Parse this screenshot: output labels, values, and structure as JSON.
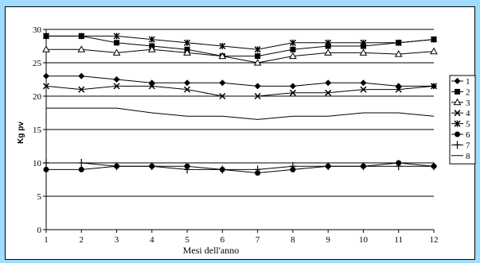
{
  "chart_data": {
    "type": "line",
    "xlabel": "Mesi dell'anno",
    "ylabel": "Kg pv",
    "x": [
      1,
      2,
      3,
      4,
      5,
      6,
      7,
      8,
      9,
      10,
      11,
      12
    ],
    "ylim": [
      0,
      30
    ],
    "xlim": [
      1,
      12
    ],
    "yticks": [
      0,
      5,
      10,
      15,
      20,
      25,
      30
    ],
    "grid": "horizontal",
    "legend_position": "right",
    "series": [
      {
        "name": "1",
        "marker": "diamond",
        "values": [
          23,
          23,
          22.5,
          22,
          22,
          22,
          21.5,
          21.5,
          22,
          22,
          21.5,
          21.5
        ]
      },
      {
        "name": "2",
        "marker": "square",
        "values": [
          29,
          29,
          28,
          27.5,
          27,
          26,
          26,
          27,
          27.5,
          27.5,
          28,
          28.5
        ]
      },
      {
        "name": "3",
        "marker": "triangle",
        "values": [
          27,
          27,
          26.5,
          27,
          26.5,
          26,
          25,
          26,
          26.5,
          26.5,
          26.3,
          26.7
        ]
      },
      {
        "name": "4",
        "marker": "x",
        "values": [
          21.5,
          21,
          21.5,
          21.5,
          21,
          20,
          20,
          20.5,
          20.5,
          21,
          21,
          21.5
        ]
      },
      {
        "name": "5",
        "marker": "star",
        "values": [
          29,
          29,
          29,
          28.5,
          28,
          27.5,
          27,
          28,
          28,
          28,
          28,
          28.5
        ]
      },
      {
        "name": "6",
        "marker": "circle",
        "values": [
          9,
          9,
          9.5,
          9.5,
          9.5,
          9,
          8.5,
          9,
          9.5,
          9.5,
          10,
          9.5
        ]
      },
      {
        "name": "7",
        "marker": "plus",
        "values": [
          10,
          10,
          9.5,
          9.5,
          9,
          9,
          9,
          9.5,
          9.5,
          9.5,
          9.5,
          9.5
        ]
      },
      {
        "name": "8",
        "marker": "none",
        "values": [
          18.2,
          18.2,
          18.2,
          17.5,
          17,
          17,
          16.5,
          17,
          17,
          17.5,
          17.5,
          17
        ]
      }
    ]
  }
}
